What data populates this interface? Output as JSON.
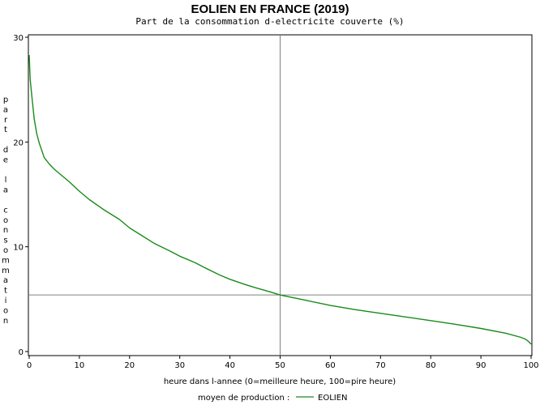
{
  "chart_data": {
    "type": "line",
    "title": "EOLIEN EN FRANCE (2019)",
    "subtitle": "Part de la consommation d-electricite couverte (%)",
    "xlabel": "heure dans l-annee (0=meilleure heure, 100=pire heure)",
    "ylabel": "part de la consommation",
    "xlim": [
      0,
      100
    ],
    "ylim": [
      0,
      30
    ],
    "xticks": [
      0,
      10,
      20,
      30,
      40,
      50,
      60,
      70,
      80,
      90,
      100
    ],
    "yticks": [
      0,
      10,
      20,
      30
    ],
    "grid": false,
    "reference_lines": {
      "x": 50,
      "y": 5.4
    },
    "legend": {
      "title": "moyen de production :",
      "position": "bottom"
    },
    "series": [
      {
        "name": "EOLIEN",
        "color": "#1a8a1a",
        "x": [
          0,
          0.2,
          0.5,
          1,
          1.5,
          2,
          3,
          4,
          5,
          6,
          8,
          10,
          12,
          15,
          18,
          20,
          22,
          25,
          28,
          30,
          33,
          35,
          38,
          40,
          43,
          45,
          48,
          50,
          55,
          60,
          65,
          70,
          75,
          80,
          85,
          90,
          95,
          98,
          99,
          99.5,
          100
        ],
        "y": [
          28.3,
          26,
          24.5,
          22.2,
          20.8,
          19.9,
          18.5,
          17.9,
          17.4,
          17.0,
          16.2,
          15.3,
          14.5,
          13.5,
          12.6,
          11.8,
          11.2,
          10.3,
          9.6,
          9.1,
          8.5,
          8.0,
          7.3,
          6.9,
          6.4,
          6.1,
          5.7,
          5.4,
          4.9,
          4.4,
          4.0,
          3.65,
          3.3,
          2.95,
          2.6,
          2.2,
          1.75,
          1.35,
          1.15,
          0.95,
          0.7
        ]
      }
    ]
  },
  "colors": {
    "series_line": "#1a8a1a",
    "reference_line": "#808080",
    "axis": "#000000"
  }
}
